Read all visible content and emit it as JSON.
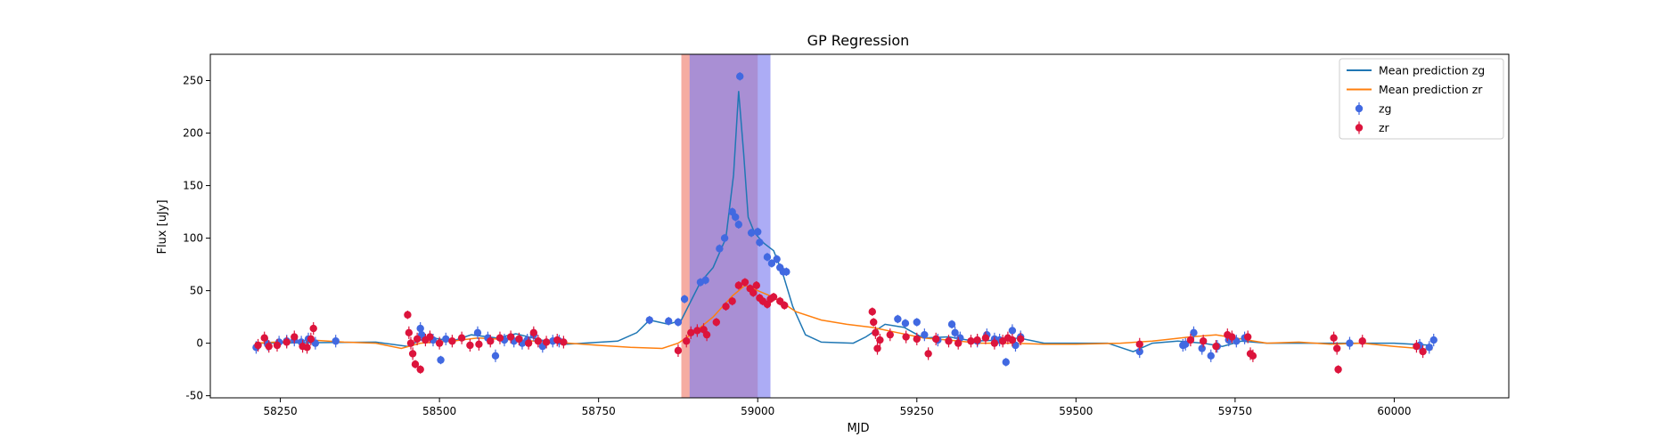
{
  "chart_data": {
    "type": "scatter",
    "title": "GP Regression",
    "xlabel": "MJD",
    "ylabel": "Flux [uJy]",
    "xlim": [
      58140,
      60180
    ],
    "ylim": [
      -52,
      275
    ],
    "xticks": [
      58250,
      58500,
      58750,
      59000,
      59250,
      59500,
      59750,
      60000
    ],
    "yticks": [
      -50,
      0,
      50,
      100,
      150,
      200,
      250
    ],
    "grid": false,
    "legend_position": "top-right",
    "colors": {
      "mean_zg": "#1f77b4",
      "mean_zr": "#ff7f0e",
      "zg": "#4169e1",
      "zr": "#dc143c",
      "span_zr": "#f08070",
      "span_zg": "#8080f0"
    },
    "spans": [
      {
        "band": "zr",
        "x_range": [
          58880,
          59000
        ]
      },
      {
        "band": "zg",
        "x_range": [
          58893,
          59020
        ]
      }
    ],
    "lines": [
      {
        "name": "Mean prediction zg",
        "points": [
          [
            58210,
            0
          ],
          [
            58400,
            1
          ],
          [
            58450,
            -3
          ],
          [
            58480,
            6
          ],
          [
            58520,
            2
          ],
          [
            58550,
            8
          ],
          [
            58590,
            5
          ],
          [
            58620,
            9
          ],
          [
            58660,
            3
          ],
          [
            58700,
            -1
          ],
          [
            58780,
            2
          ],
          [
            58810,
            10
          ],
          [
            58830,
            22
          ],
          [
            58860,
            18
          ],
          [
            58880,
            22
          ],
          [
            58895,
            40
          ],
          [
            58910,
            58
          ],
          [
            58930,
            72
          ],
          [
            58950,
            100
          ],
          [
            58962,
            160
          ],
          [
            58970,
            240
          ],
          [
            58978,
            180
          ],
          [
            58985,
            120
          ],
          [
            58995,
            105
          ],
          [
            59010,
            95
          ],
          [
            59025,
            88
          ],
          [
            59040,
            65
          ],
          [
            59055,
            35
          ],
          [
            59075,
            8
          ],
          [
            59100,
            1
          ],
          [
            59150,
            0
          ],
          [
            59170,
            6
          ],
          [
            59200,
            18
          ],
          [
            59230,
            15
          ],
          [
            59260,
            5
          ],
          [
            59300,
            6
          ],
          [
            59340,
            2
          ],
          [
            59380,
            3
          ],
          [
            59410,
            5
          ],
          [
            59450,
            0
          ],
          [
            59550,
            0
          ],
          [
            59590,
            -8
          ],
          [
            59620,
            0
          ],
          [
            59660,
            2
          ],
          [
            59700,
            0
          ],
          [
            59730,
            -3
          ],
          [
            59760,
            2
          ],
          [
            59800,
            0
          ],
          [
            59900,
            0
          ],
          [
            59950,
            0
          ],
          [
            60000,
            0
          ],
          [
            60060,
            -2
          ]
        ]
      },
      {
        "name": "Mean prediction zr",
        "points": [
          [
            58210,
            0
          ],
          [
            58300,
            3
          ],
          [
            58350,
            1
          ],
          [
            58400,
            0
          ],
          [
            58440,
            -5
          ],
          [
            58470,
            0
          ],
          [
            58520,
            2
          ],
          [
            58560,
            5
          ],
          [
            58620,
            3
          ],
          [
            58680,
            1
          ],
          [
            58750,
            -2
          ],
          [
            58800,
            -4
          ],
          [
            58850,
            -5
          ],
          [
            58875,
            0
          ],
          [
            58900,
            10
          ],
          [
            58930,
            25
          ],
          [
            58960,
            45
          ],
          [
            58980,
            55
          ],
          [
            59000,
            50
          ],
          [
            59020,
            45
          ],
          [
            59040,
            38
          ],
          [
            59060,
            30
          ],
          [
            59100,
            22
          ],
          [
            59140,
            18
          ],
          [
            59180,
            15
          ],
          [
            59220,
            10
          ],
          [
            59260,
            5
          ],
          [
            59300,
            3
          ],
          [
            59350,
            0
          ],
          [
            59400,
            0
          ],
          [
            59450,
            -1
          ],
          [
            59500,
            -1
          ],
          [
            59570,
            0
          ],
          [
            59620,
            2
          ],
          [
            59680,
            6
          ],
          [
            59720,
            8
          ],
          [
            59760,
            4
          ],
          [
            59800,
            0
          ],
          [
            59850,
            1
          ],
          [
            59900,
            -1
          ],
          [
            59950,
            0
          ],
          [
            60000,
            -3
          ],
          [
            60060,
            -6
          ]
        ]
      }
    ],
    "series": [
      {
        "name": "zg",
        "points": [
          [
            58212,
            -4
          ],
          [
            58230,
            -1
          ],
          [
            58248,
            1
          ],
          [
            58260,
            2
          ],
          [
            58272,
            3
          ],
          [
            58283,
            1
          ],
          [
            58294,
            4
          ],
          [
            58305,
            0
          ],
          [
            58337,
            2
          ],
          [
            58470,
            14
          ],
          [
            58472,
            8
          ],
          [
            58490,
            3
          ],
          [
            58502,
            -16
          ],
          [
            58510,
            4
          ],
          [
            58560,
            10
          ],
          [
            58576,
            5
          ],
          [
            58588,
            -12
          ],
          [
            58602,
            3
          ],
          [
            58617,
            2
          ],
          [
            58630,
            0
          ],
          [
            58638,
            3
          ],
          [
            58648,
            8
          ],
          [
            58662,
            -3
          ],
          [
            58678,
            2
          ],
          [
            58688,
            2
          ],
          [
            58830,
            22
          ],
          [
            58860,
            21
          ],
          [
            58875,
            20
          ],
          [
            58885,
            42
          ],
          [
            58910,
            58
          ],
          [
            58918,
            60
          ],
          [
            58940,
            90
          ],
          [
            58948,
            100
          ],
          [
            58960,
            125
          ],
          [
            58965,
            120
          ],
          [
            58970,
            113
          ],
          [
            58972,
            254
          ],
          [
            58990,
            105
          ],
          [
            59000,
            106
          ],
          [
            59003,
            96
          ],
          [
            59015,
            82
          ],
          [
            59022,
            76
          ],
          [
            59030,
            80
          ],
          [
            59035,
            72
          ],
          [
            59040,
            68
          ],
          [
            59045,
            68
          ],
          [
            59220,
            23
          ],
          [
            59232,
            19
          ],
          [
            59250,
            20
          ],
          [
            59262,
            8
          ],
          [
            59283,
            3
          ],
          [
            59305,
            18
          ],
          [
            59310,
            10
          ],
          [
            59318,
            5
          ],
          [
            59345,
            2
          ],
          [
            59360,
            8
          ],
          [
            59372,
            4
          ],
          [
            59380,
            3
          ],
          [
            59390,
            -18
          ],
          [
            59400,
            12
          ],
          [
            59405,
            -2
          ],
          [
            59413,
            6
          ],
          [
            59600,
            -8
          ],
          [
            59668,
            -2
          ],
          [
            59672,
            -1
          ],
          [
            59685,
            10
          ],
          [
            59698,
            -5
          ],
          [
            59712,
            -12
          ],
          [
            59722,
            -3
          ],
          [
            59740,
            3
          ],
          [
            59752,
            2
          ],
          [
            59765,
            5
          ],
          [
            59930,
            0
          ],
          [
            60040,
            -2
          ],
          [
            60055,
            -4
          ],
          [
            60062,
            3
          ]
        ]
      },
      {
        "name": "zr",
        "points": [
          [
            58215,
            -2
          ],
          [
            58225,
            5
          ],
          [
            58232,
            -3
          ],
          [
            58245,
            -2
          ],
          [
            58260,
            1
          ],
          [
            58272,
            6
          ],
          [
            58285,
            -3
          ],
          [
            58292,
            -4
          ],
          [
            58298,
            4
          ],
          [
            58302,
            14
          ],
          [
            58450,
            27
          ],
          [
            58452,
            10
          ],
          [
            58455,
            0
          ],
          [
            58458,
            -10
          ],
          [
            58462,
            -20
          ],
          [
            58465,
            4
          ],
          [
            58470,
            -25
          ],
          [
            58478,
            3
          ],
          [
            58485,
            6
          ],
          [
            58500,
            0
          ],
          [
            58520,
            2
          ],
          [
            58535,
            5
          ],
          [
            58548,
            -2
          ],
          [
            58562,
            -1
          ],
          [
            58580,
            2
          ],
          [
            58595,
            5
          ],
          [
            58612,
            6
          ],
          [
            58625,
            4
          ],
          [
            58640,
            0
          ],
          [
            58648,
            10
          ],
          [
            58655,
            2
          ],
          [
            58668,
            1
          ],
          [
            58685,
            3
          ],
          [
            58695,
            1
          ],
          [
            58875,
            -7
          ],
          [
            58888,
            2
          ],
          [
            58895,
            10
          ],
          [
            58905,
            12
          ],
          [
            58915,
            13
          ],
          [
            58920,
            8
          ],
          [
            58935,
            20
          ],
          [
            58950,
            35
          ],
          [
            58960,
            40
          ],
          [
            58970,
            55
          ],
          [
            58980,
            58
          ],
          [
            58988,
            52
          ],
          [
            58993,
            48
          ],
          [
            58998,
            55
          ],
          [
            59003,
            43
          ],
          [
            59008,
            40
          ],
          [
            59015,
            37
          ],
          [
            59020,
            42
          ],
          [
            59025,
            44
          ],
          [
            59035,
            40
          ],
          [
            59042,
            36
          ],
          [
            59180,
            30
          ],
          [
            59182,
            20
          ],
          [
            59185,
            10
          ],
          [
            59188,
            -5
          ],
          [
            59192,
            3
          ],
          [
            59208,
            8
          ],
          [
            59233,
            6
          ],
          [
            59250,
            4
          ],
          [
            59268,
            -10
          ],
          [
            59280,
            4
          ],
          [
            59300,
            2
          ],
          [
            59315,
            0
          ],
          [
            59335,
            2
          ],
          [
            59345,
            3
          ],
          [
            59358,
            5
          ],
          [
            59372,
            0
          ],
          [
            59385,
            2
          ],
          [
            59393,
            5
          ],
          [
            59400,
            3
          ],
          [
            59413,
            4
          ],
          [
            59600,
            -1
          ],
          [
            59680,
            3
          ],
          [
            59700,
            2
          ],
          [
            59720,
            -3
          ],
          [
            59738,
            8
          ],
          [
            59745,
            6
          ],
          [
            59770,
            6
          ],
          [
            59774,
            -10
          ],
          [
            59778,
            -12
          ],
          [
            59905,
            5
          ],
          [
            59910,
            -5
          ],
          [
            59912,
            -25
          ],
          [
            59950,
            2
          ],
          [
            60035,
            -3
          ],
          [
            60045,
            -8
          ]
        ]
      }
    ],
    "legend": [
      {
        "label": "Mean prediction zg",
        "kind": "line",
        "color_key": "mean_zg"
      },
      {
        "label": "Mean prediction zr",
        "kind": "line",
        "color_key": "mean_zr"
      },
      {
        "label": "zg",
        "kind": "marker",
        "color_key": "zg"
      },
      {
        "label": "zr",
        "kind": "marker",
        "color_key": "zr"
      }
    ]
  }
}
